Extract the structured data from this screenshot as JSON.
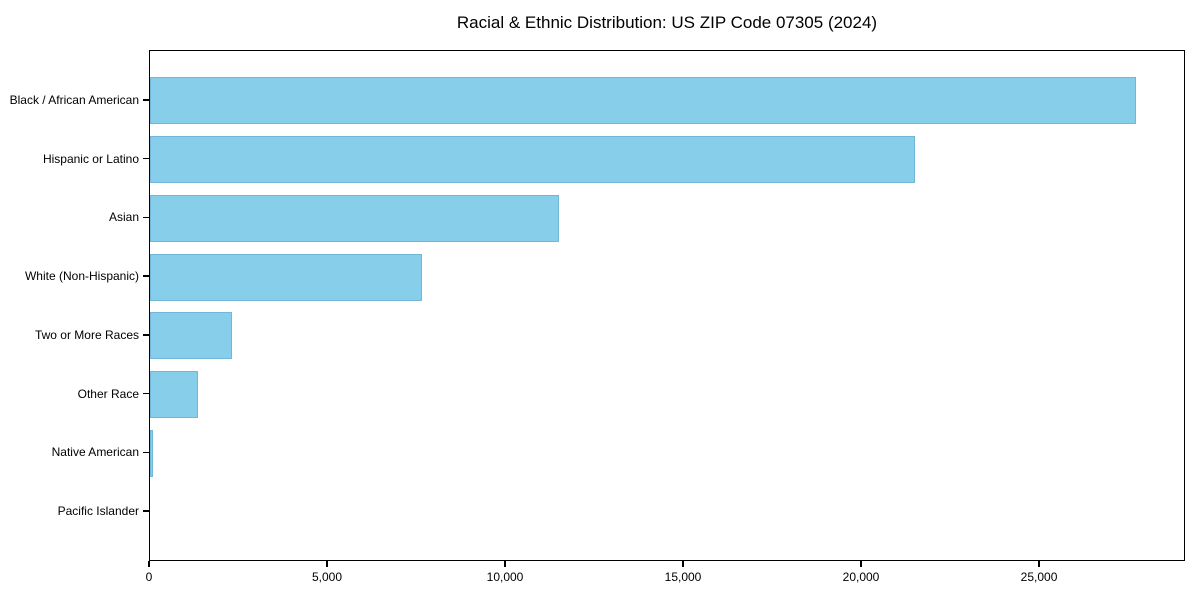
{
  "chart_data": {
    "type": "bar",
    "orientation": "horizontal",
    "title": "Racial & Ethnic Distribution: US ZIP Code 07305 (2024)",
    "categories": [
      "Black / African American",
      "Hispanic or Latino",
      "Asian",
      "White (Non-Hispanic)",
      "Two or More Races",
      "Other Race",
      "Native American",
      "Pacific Islander"
    ],
    "values": [
      27700,
      21500,
      11500,
      7650,
      2300,
      1350,
      80,
      0
    ],
    "xlabel": "",
    "ylabel": "",
    "xlim": [
      0,
      29100
    ],
    "xticks": [
      0,
      5000,
      10000,
      15000,
      20000,
      25000
    ],
    "xtick_labels": [
      "0",
      "5,000",
      "10,000",
      "15,000",
      "20,000",
      "25,000"
    ],
    "bar_color": "#87CEEB",
    "axis_color": "#000000",
    "text_color": "#000000",
    "background_color": "#ffffff",
    "grid": false,
    "legend": null
  }
}
